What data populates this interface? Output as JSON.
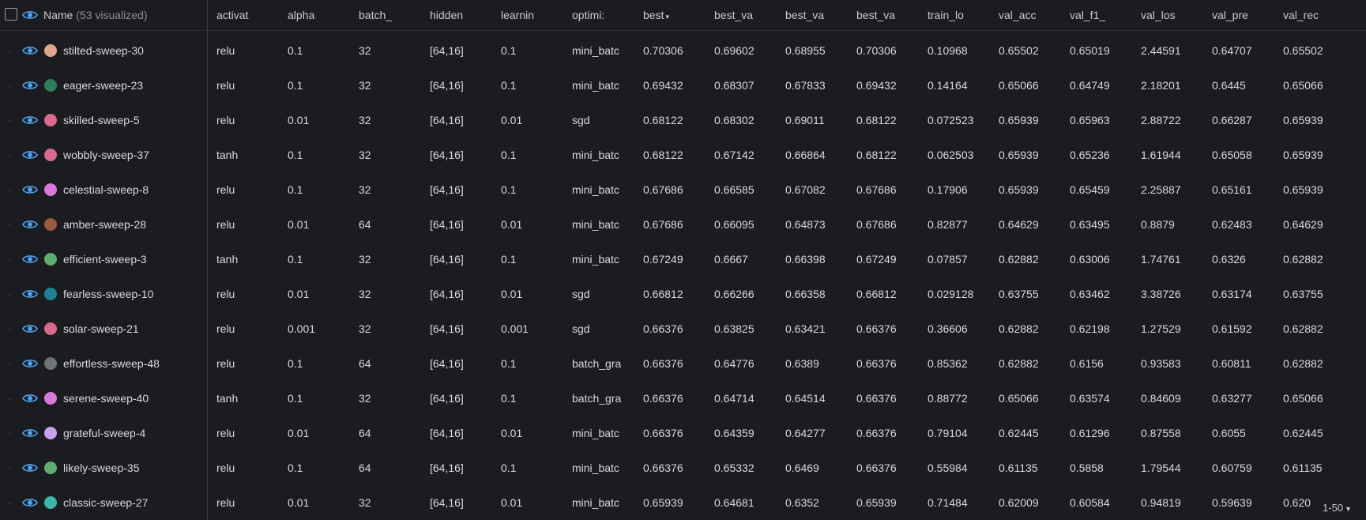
{
  "header": {
    "name_label": "Name",
    "visualized": "(53 visualized)",
    "columns": [
      "activat",
      "alpha",
      "batch_",
      "hidden",
      "learnin",
      "optimi:",
      "best",
      "best_va",
      "best_va",
      "best_va",
      "train_lo",
      "val_acc",
      "val_f1_",
      "val_los",
      "val_pre",
      "val_rec"
    ]
  },
  "sort_indicator": "▾",
  "rows": [
    {
      "name": "stilted-sweep-30",
      "color": "#e0a58a",
      "v": [
        "relu",
        "0.1",
        "32",
        "[64,16]",
        "0.1",
        "mini_batc",
        "0.70306",
        "0.69602",
        "0.68955",
        "0.70306",
        "0.10968",
        "0.65502",
        "0.65019",
        "2.44591",
        "0.64707",
        "0.65502"
      ]
    },
    {
      "name": "eager-sweep-23",
      "color": "#2e7d5b",
      "v": [
        "relu",
        "0.1",
        "32",
        "[64,16]",
        "0.1",
        "mini_batc",
        "0.69432",
        "0.68307",
        "0.67833",
        "0.69432",
        "0.14164",
        "0.65066",
        "0.64749",
        "2.18201",
        "0.6445",
        "0.65066"
      ]
    },
    {
      "name": "skilled-sweep-5",
      "color": "#d96a8e",
      "v": [
        "relu",
        "0.01",
        "32",
        "[64,16]",
        "0.01",
        "sgd",
        "0.68122",
        "0.68302",
        "0.69011",
        "0.68122",
        "0.072523",
        "0.65939",
        "0.65963",
        "2.88722",
        "0.66287",
        "0.65939"
      ]
    },
    {
      "name": "wobbly-sweep-37",
      "color": "#d96a8e",
      "v": [
        "tanh",
        "0.1",
        "32",
        "[64,16]",
        "0.1",
        "mini_batc",
        "0.68122",
        "0.67142",
        "0.66864",
        "0.68122",
        "0.062503",
        "0.65939",
        "0.65236",
        "1.61944",
        "0.65058",
        "0.65939"
      ]
    },
    {
      "name": "celestial-sweep-8",
      "color": "#d978d8",
      "v": [
        "relu",
        "0.1",
        "32",
        "[64,16]",
        "0.1",
        "mini_batc",
        "0.67686",
        "0.66585",
        "0.67082",
        "0.67686",
        "0.17906",
        "0.65939",
        "0.65459",
        "2.25887",
        "0.65161",
        "0.65939"
      ]
    },
    {
      "name": "amber-sweep-28",
      "color": "#9a5a3e",
      "v": [
        "relu",
        "0.01",
        "64",
        "[64,16]",
        "0.01",
        "mini_batc",
        "0.67686",
        "0.66095",
        "0.64873",
        "0.67686",
        "0.82877",
        "0.64629",
        "0.63495",
        "0.8879",
        "0.62483",
        "0.64629"
      ]
    },
    {
      "name": "efficient-sweep-3",
      "color": "#5fae6e",
      "v": [
        "tanh",
        "0.1",
        "32",
        "[64,16]",
        "0.1",
        "mini_batc",
        "0.67249",
        "0.6667",
        "0.66398",
        "0.67249",
        "0.07857",
        "0.62882",
        "0.63006",
        "1.74761",
        "0.6326",
        "0.62882"
      ]
    },
    {
      "name": "fearless-sweep-10",
      "color": "#1f7f95",
      "v": [
        "relu",
        "0.01",
        "32",
        "[64,16]",
        "0.01",
        "sgd",
        "0.66812",
        "0.66266",
        "0.66358",
        "0.66812",
        "0.029128",
        "0.63755",
        "0.63462",
        "3.38726",
        "0.63174",
        "0.63755"
      ]
    },
    {
      "name": "solar-sweep-21",
      "color": "#d96a8e",
      "v": [
        "relu",
        "0.001",
        "32",
        "[64,16]",
        "0.001",
        "sgd",
        "0.66376",
        "0.63825",
        "0.63421",
        "0.66376",
        "0.36606",
        "0.62882",
        "0.62198",
        "1.27529",
        "0.61592",
        "0.62882"
      ]
    },
    {
      "name": "effortless-sweep-48",
      "color": "#6f7378",
      "v": [
        "relu",
        "0.1",
        "64",
        "[64,16]",
        "0.1",
        "batch_gra",
        "0.66376",
        "0.64776",
        "0.6389",
        "0.66376",
        "0.85362",
        "0.62882",
        "0.6156",
        "0.93583",
        "0.60811",
        "0.62882"
      ]
    },
    {
      "name": "serene-sweep-40",
      "color": "#d978d8",
      "v": [
        "tanh",
        "0.1",
        "32",
        "[64,16]",
        "0.1",
        "batch_gra",
        "0.66376",
        "0.64714",
        "0.64514",
        "0.66376",
        "0.88772",
        "0.65066",
        "0.63574",
        "0.84609",
        "0.63277",
        "0.65066"
      ]
    },
    {
      "name": "grateful-sweep-4",
      "color": "#c9a0f0",
      "v": [
        "relu",
        "0.01",
        "64",
        "[64,16]",
        "0.01",
        "mini_batc",
        "0.66376",
        "0.64359",
        "0.64277",
        "0.66376",
        "0.79104",
        "0.62445",
        "0.61296",
        "0.87558",
        "0.6055",
        "0.62445"
      ]
    },
    {
      "name": "likely-sweep-35",
      "color": "#5fae6e",
      "v": [
        "relu",
        "0.1",
        "64",
        "[64,16]",
        "0.1",
        "mini_batc",
        "0.66376",
        "0.65332",
        "0.6469",
        "0.66376",
        "0.55984",
        "0.61135",
        "0.5858",
        "1.79544",
        "0.60759",
        "0.61135"
      ]
    },
    {
      "name": "classic-sweep-27",
      "color": "#3fb6a8",
      "v": [
        "relu",
        "0.01",
        "32",
        "[64,16]",
        "0.01",
        "mini_batc",
        "0.65939",
        "0.64681",
        "0.6352",
        "0.65939",
        "0.71484",
        "0.62009",
        "0.60584",
        "0.94819",
        "0.59639",
        "0.620"
      ]
    }
  ],
  "pager": "1-50",
  "icons": {
    "visibility": "eye-icon",
    "handle": "drag-handle-icon",
    "dropdown": "chevron-down-icon"
  },
  "colors": {
    "background": "#1a1c1f",
    "eye": "#4aa3f0",
    "text": "#d8dadd",
    "muted": "#8b8f95"
  }
}
